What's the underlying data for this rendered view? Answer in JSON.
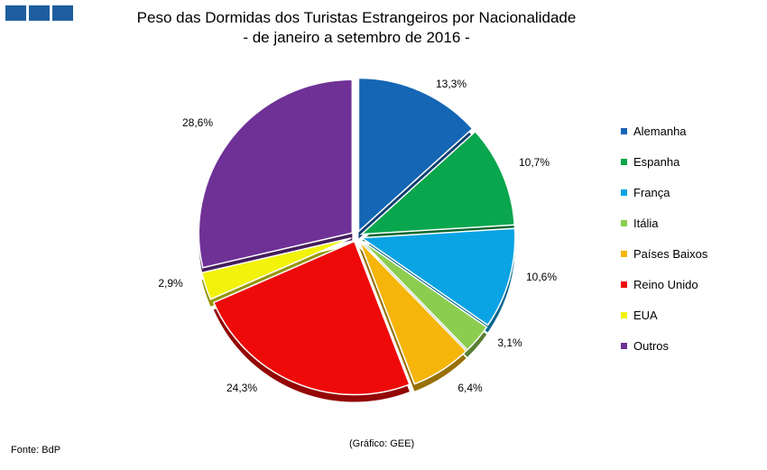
{
  "logo_colors": [
    "#1f5e9e",
    "#1f5e9e",
    "#1f5e9e"
  ],
  "chart_data": {
    "type": "pie",
    "title": "Peso das Dormidas dos Turistas Estrangeiros por Nacionalidade",
    "subtitle": "- de janeiro a setembro de 2016 -",
    "legend_position": "right",
    "slices": [
      {
        "name": "Alemanha",
        "value": 13.3,
        "label": "13,3%",
        "color": "#1566b4"
      },
      {
        "name": "Espanha",
        "value": 10.7,
        "label": "10,7%",
        "color": "#0aa64d"
      },
      {
        "name": "França",
        "value": 10.6,
        "label": "10,6%",
        "color": "#0aa3e4"
      },
      {
        "name": "Itália",
        "value": 3.1,
        "label": "3,1%",
        "color": "#8ccd50"
      },
      {
        "name": "Países Baixos",
        "value": 6.4,
        "label": "6,4%",
        "color": "#f5b50a"
      },
      {
        "name": "Reino Unido",
        "value": 24.3,
        "label": "24,3%",
        "color": "#ef0a0a"
      },
      {
        "name": "EUA",
        "value": 2.9,
        "label": "2,9%",
        "color": "#f2f20a"
      },
      {
        "name": "Outros",
        "value": 28.6,
        "label": "28,6%",
        "color": "#6f3196"
      }
    ]
  },
  "footer": {
    "source": "Fonte: BdP",
    "credit": "(Gráfico: GEE)"
  }
}
